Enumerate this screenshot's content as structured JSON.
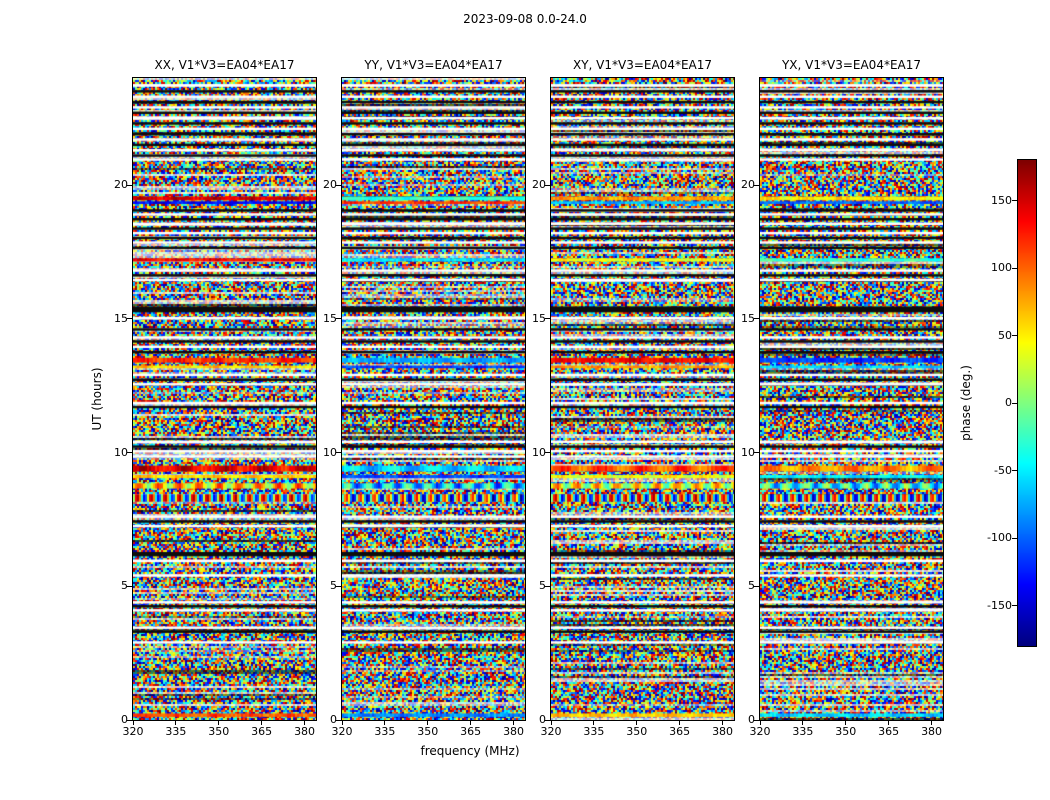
{
  "chart_data": {
    "type": "heatmap",
    "title": "2023-09-08 0.0-24.0",
    "xlabel": "frequency (MHz)",
    "ylabel": "UT (hours)",
    "colormap": "jet",
    "content": "four dynamic-spectrum panels of interferometric visibility phase noise (-180 to 180 deg) vs frequency and time; horizontal white gaps, black rows and smooth colored phase bands repeat across all panels",
    "x_range_mhz": [
      320,
      384
    ],
    "x_ticks": [
      320,
      335,
      350,
      365,
      380
    ],
    "y_range_hours": [
      0,
      24
    ],
    "y_ticks": [
      0,
      5,
      10,
      15,
      20
    ],
    "colorbar": {
      "label": "phase (deg.)",
      "vmin": -180,
      "vmax": 180,
      "ticks": [
        150,
        100,
        50,
        0,
        -50,
        -100,
        -150
      ]
    },
    "panels": [
      {
        "title": "XX, V1*V3=EA04*EA17",
        "seed": 101
      },
      {
        "title": "YY, V1*V3=EA04*EA17",
        "seed": 202
      },
      {
        "title": "XY, V1*V3=EA04*EA17",
        "seed": 303
      },
      {
        "title": "YX, V1*V3=EA04*EA17",
        "seed": 404
      }
    ],
    "stripes": [
      {
        "kind": "white",
        "ut": 23.72,
        "h": 0.1
      },
      {
        "kind": "black",
        "ut": 23.5,
        "h": 0.09
      },
      {
        "kind": "white",
        "ut": 23.3,
        "h": 0.09
      },
      {
        "kind": "black",
        "ut": 23.1,
        "h": 0.09
      },
      {
        "kind": "white",
        "ut": 22.9,
        "h": 0.09
      },
      {
        "kind": "black",
        "ut": 22.7,
        "h": 0.09
      },
      {
        "kind": "white",
        "ut": 22.5,
        "h": 0.09
      },
      {
        "kind": "black",
        "ut": 22.3,
        "h": 0.09
      },
      {
        "kind": "white",
        "ut": 22.1,
        "h": 0.09
      },
      {
        "kind": "black",
        "ut": 21.9,
        "h": 0.09
      },
      {
        "kind": "white",
        "ut": 21.7,
        "h": 0.09
      },
      {
        "kind": "black",
        "ut": 21.5,
        "h": 0.09
      },
      {
        "kind": "white",
        "ut": 21.3,
        "h": 0.09
      },
      {
        "kind": "black",
        "ut": 21.1,
        "h": 0.09
      },
      {
        "kind": "white",
        "ut": 20.95,
        "h": 0.09
      },
      {
        "kind": "band",
        "ut": 19.5,
        "h": 0.14,
        "values": [
          150,
          -30,
          80,
          50
        ]
      },
      {
        "kind": "band",
        "ut": 19.34,
        "h": 0.1,
        "values": [
          -135,
          115,
          -70,
          -100
        ]
      },
      {
        "kind": "black",
        "ut": 19.05,
        "h": 0.09
      },
      {
        "kind": "white",
        "ut": 18.9,
        "h": 0.09
      },
      {
        "kind": "black",
        "ut": 18.72,
        "h": 0.09
      },
      {
        "kind": "white",
        "ut": 18.55,
        "h": 0.09
      },
      {
        "kind": "black",
        "ut": 18.37,
        "h": 0.09
      },
      {
        "kind": "white",
        "ut": 18.2,
        "h": 0.09
      },
      {
        "kind": "black",
        "ut": 18.02,
        "h": 0.09
      },
      {
        "kind": "white",
        "ut": 17.85,
        "h": 0.09
      },
      {
        "kind": "black",
        "ut": 17.65,
        "h": 0.09
      },
      {
        "kind": "band",
        "ut": 17.2,
        "h": 0.12,
        "values": [
          135,
          -55,
          40,
          -25
        ]
      },
      {
        "kind": "white",
        "ut": 16.8,
        "h": 0.09
      },
      {
        "kind": "black",
        "ut": 16.62,
        "h": 0.09
      },
      {
        "kind": "white",
        "ut": 16.45,
        "h": 0.09
      },
      {
        "kind": "black",
        "ut": 15.35,
        "h": 0.22
      },
      {
        "kind": "white",
        "ut": 15.02,
        "h": 0.1
      },
      {
        "kind": "black",
        "ut": 14.6,
        "h": 0.09
      },
      {
        "kind": "white",
        "ut": 14.3,
        "h": 0.09
      },
      {
        "kind": "black",
        "ut": 14.15,
        "h": 0.09
      },
      {
        "kind": "white",
        "ut": 13.95,
        "h": 0.09
      },
      {
        "kind": "black",
        "ut": 13.75,
        "h": 0.09
      },
      {
        "kind": "band",
        "ut": 13.45,
        "h": 0.18,
        "values": [
          120,
          -75,
          135,
          -115
        ]
      },
      {
        "kind": "band",
        "ut": 13.2,
        "h": 0.1,
        "values": [
          60,
          -115,
          80,
          -60
        ]
      },
      {
        "kind": "white",
        "ut": 12.9,
        "h": 0.09
      },
      {
        "kind": "black",
        "ut": 12.72,
        "h": 0.09
      },
      {
        "kind": "white",
        "ut": 12.55,
        "h": 0.09
      },
      {
        "kind": "white",
        "ut": 11.85,
        "h": 0.09
      },
      {
        "kind": "black",
        "ut": 11.7,
        "h": 0.09
      },
      {
        "kind": "white",
        "ut": 10.4,
        "h": 0.09
      },
      {
        "kind": "black",
        "ut": 10.22,
        "h": 0.09
      },
      {
        "kind": "white",
        "ut": 10.05,
        "h": 0.09
      },
      {
        "kind": "white",
        "ut": 9.85,
        "h": 0.09
      },
      {
        "kind": "band",
        "ut": 9.4,
        "h": 0.22,
        "values": [
          140,
          -60,
          105,
          85
        ],
        "amp": 25,
        "wl": 20
      },
      {
        "kind": "band",
        "ut": 9.1,
        "h": 0.12,
        "values": [
          60,
          -110,
          40,
          -50
        ]
      },
      {
        "kind": "band",
        "ut": 8.75,
        "h": 0.2,
        "values": [
          60,
          -60,
          40,
          -40
        ],
        "amp": 60,
        "wl": 10
      },
      {
        "kind": "band",
        "ut": 8.3,
        "h": 0.28,
        "values": [
          20,
          -20,
          10,
          -10
        ],
        "amp": 150,
        "wl": 7
      },
      {
        "kind": "white",
        "ut": 7.6,
        "h": 0.09
      },
      {
        "kind": "black",
        "ut": 7.42,
        "h": 0.09
      },
      {
        "kind": "white",
        "ut": 7.25,
        "h": 0.09
      },
      {
        "kind": "black",
        "ut": 6.2,
        "h": 0.16
      },
      {
        "kind": "white",
        "ut": 5.95,
        "h": 0.1
      },
      {
        "kind": "white",
        "ut": 5.4,
        "h": 0.09
      },
      {
        "kind": "white",
        "ut": 4.4,
        "h": 0.09
      },
      {
        "kind": "black",
        "ut": 4.25,
        "h": 0.09
      },
      {
        "kind": "white",
        "ut": 4.1,
        "h": 0.09
      },
      {
        "kind": "white",
        "ut": 3.45,
        "h": 0.09
      },
      {
        "kind": "black",
        "ut": 3.3,
        "h": 0.09
      },
      {
        "kind": "white",
        "ut": 2.9,
        "h": 0.09
      },
      {
        "kind": "band",
        "ut": 0.18,
        "h": 0.13,
        "values": [
          105,
          -85,
          65,
          -60
        ]
      }
    ]
  }
}
